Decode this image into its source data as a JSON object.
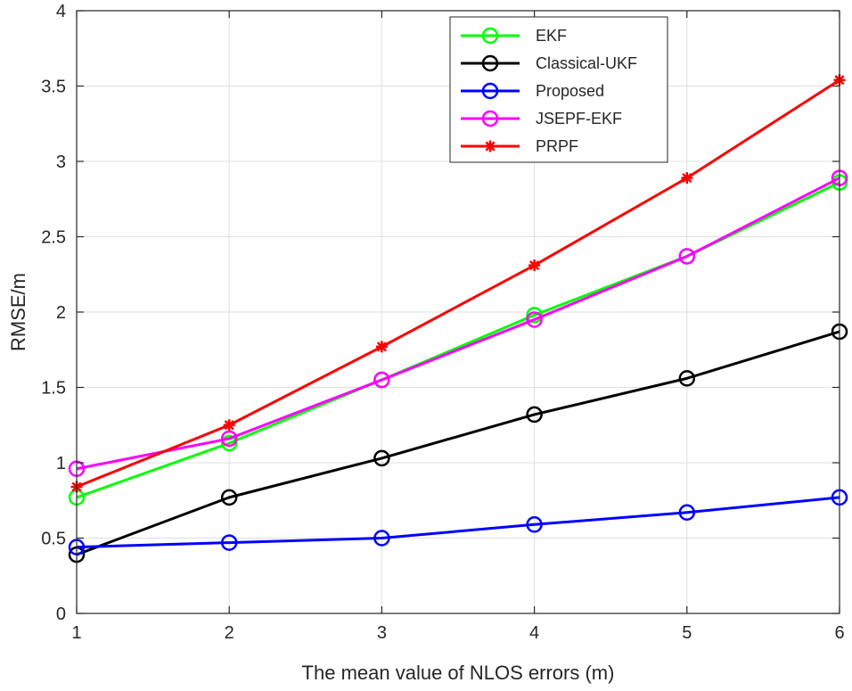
{
  "chart_data": {
    "type": "line",
    "title": "",
    "xlabel": "The mean value of NLOS errors (m)",
    "ylabel": "RMSE/m",
    "xlim": [
      1,
      6
    ],
    "ylim": [
      0,
      4
    ],
    "x": [
      1,
      2,
      3,
      4,
      5,
      6
    ],
    "xticks": [
      1,
      2,
      3,
      4,
      5,
      6
    ],
    "yticks": [
      0,
      0.5,
      1,
      1.5,
      2,
      2.5,
      3,
      3.5,
      4
    ],
    "xtick_labels": [
      "1",
      "2",
      "3",
      "4",
      "5",
      "6"
    ],
    "ytick_labels": [
      "0",
      "0.5",
      "1",
      "1.5",
      "2",
      "2.5",
      "3",
      "3.5",
      "4"
    ],
    "grid": true,
    "legend_position": "top-right",
    "series": [
      {
        "name": "EKF",
        "color": "#00ff00",
        "marker": "circle",
        "values": [
          0.77,
          1.13,
          1.55,
          1.98,
          2.37,
          2.86
        ]
      },
      {
        "name": "Classical-UKF",
        "color": "#000000",
        "marker": "circle",
        "values": [
          0.39,
          0.77,
          1.03,
          1.32,
          1.56,
          1.87
        ]
      },
      {
        "name": "Proposed",
        "color": "#0000ff",
        "marker": "circle",
        "values": [
          0.44,
          0.47,
          0.5,
          0.59,
          0.67,
          0.77
        ]
      },
      {
        "name": "JSEPF-EKF",
        "color": "#ff00ff",
        "marker": "circle",
        "values": [
          0.96,
          1.16,
          1.55,
          1.95,
          2.37,
          2.89
        ]
      },
      {
        "name": "PRPF",
        "color": "#ff0000",
        "marker": "star",
        "values": [
          0.84,
          1.25,
          1.77,
          2.31,
          2.89,
          3.54
        ]
      }
    ]
  }
}
